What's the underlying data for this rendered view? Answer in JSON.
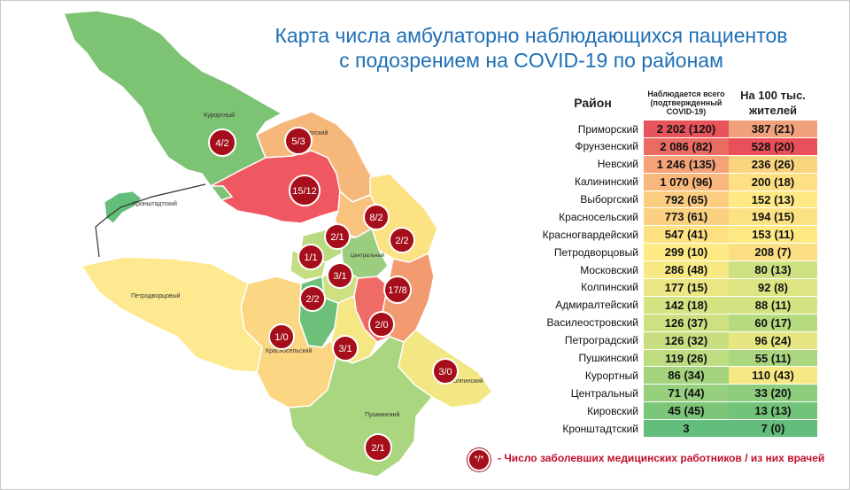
{
  "title_line1": "Карта числа амбулаторно наблюдающихся пациентов",
  "title_line2": "с подозрением на COVID-19 по районам",
  "table": {
    "header_region": "Район",
    "header_total": "Наблюдается всего (подтвержденный COVID-19)",
    "header_per100k": "На 100 тыс. жителей",
    "rows": [
      {
        "name": "Приморский",
        "total": "2 202 (120)",
        "per": "387 (21)",
        "c1": "#e8545b",
        "c2": "#f1a27c"
      },
      {
        "name": "Фрунзенский",
        "total": "2 086 (82)",
        "per": "528 (20)",
        "c1": "#ea6b62",
        "c2": "#e9505a"
      },
      {
        "name": "Невский",
        "total": "1 246 (135)",
        "per": "236 (26)",
        "c1": "#f6a37a",
        "c2": "#fbd47f"
      },
      {
        "name": "Калининский",
        "total": "1 070 (96)",
        "per": "200 (18)",
        "c1": "#f8b77d",
        "c2": "#fce083"
      },
      {
        "name": "Выборгский",
        "total": "792 (65)",
        "per": "152 (13)",
        "c1": "#fbcd80",
        "c2": "#fee984"
      },
      {
        "name": "Красносельский",
        "total": "773 (61)",
        "per": "194 (15)",
        "c1": "#fbd080",
        "c2": "#fde283"
      },
      {
        "name": "Красногвардейский",
        "total": "547 (41)",
        "per": "153 (11)",
        "c1": "#fde183",
        "c2": "#fee984"
      },
      {
        "name": "Петродворцовый",
        "total": "299 (10)",
        "per": "208 (7)",
        "c1": "#feea84",
        "c2": "#fcde82"
      },
      {
        "name": "Московский",
        "total": "286 (48)",
        "per": "80 (13)",
        "c1": "#f7ea84",
        "c2": "#cde183"
      },
      {
        "name": "Колпинский",
        "total": "177 (15)",
        "per": "92 (8)",
        "c1": "#eae683",
        "c2": "#dde583"
      },
      {
        "name": "Адмиралтейский",
        "total": "142 (18)",
        "per": "88 (11)",
        "c1": "#d5e382",
        "c2": "#d6e382"
      },
      {
        "name": "Василеостровский",
        "total": "126 (37)",
        "per": "60 (17)",
        "c1": "#cde182",
        "c2": "#b5da80"
      },
      {
        "name": "Петроградский",
        "total": "126 (32)",
        "per": "96 (24)",
        "c1": "#c8df81",
        "c2": "#e6e683"
      },
      {
        "name": "Пушкинский",
        "total": "119 (26)",
        "per": "55 (11)",
        "c1": "#bedc80",
        "c2": "#a9d67f"
      },
      {
        "name": "Курортный",
        "total": "86 (34)",
        "per": "110 (43)",
        "c1": "#a4d47e",
        "c2": "#f6e984"
      },
      {
        "name": "Центральный",
        "total": "71 (44)",
        "per": "33 (20)",
        "c1": "#96cf7d",
        "c2": "#8dcc7c"
      },
      {
        "name": "Кировский",
        "total": "45 (45)",
        "per": "13 (13)",
        "c1": "#7cc67a",
        "c2": "#72c37a"
      },
      {
        "name": "Кронштадтский",
        "total": "3",
        "per": "7 (0)",
        "c1": "#63be7b",
        "c2": "#63be7b"
      }
    ]
  },
  "map": {
    "district_labels": [
      "Курортный",
      "Выборгский",
      "Кронштадтский",
      "Петродворцовый",
      "Центральный",
      "Красносельский",
      "Колпинский",
      "Пушкинский"
    ],
    "markers": [
      {
        "label": "4/2"
      },
      {
        "label": "5/3"
      },
      {
        "label": "15/12"
      },
      {
        "label": "8/2"
      },
      {
        "label": "2/1"
      },
      {
        "label": "2/2"
      },
      {
        "label": "1/1"
      },
      {
        "label": "3/1"
      },
      {
        "label": "17/8"
      },
      {
        "label": "2/2"
      },
      {
        "label": "2/0"
      },
      {
        "label": "1/0"
      },
      {
        "label": "3/1"
      },
      {
        "label": "3/0"
      },
      {
        "label": "2/1"
      }
    ]
  },
  "legend": {
    "marker_label": "*/*",
    "text": "- Число заболевших медицинских работников / из них врачей"
  },
  "colors": {
    "title": "#1f6fb5",
    "marker": "#a50e1a",
    "legend_text": "#c0102a"
  }
}
